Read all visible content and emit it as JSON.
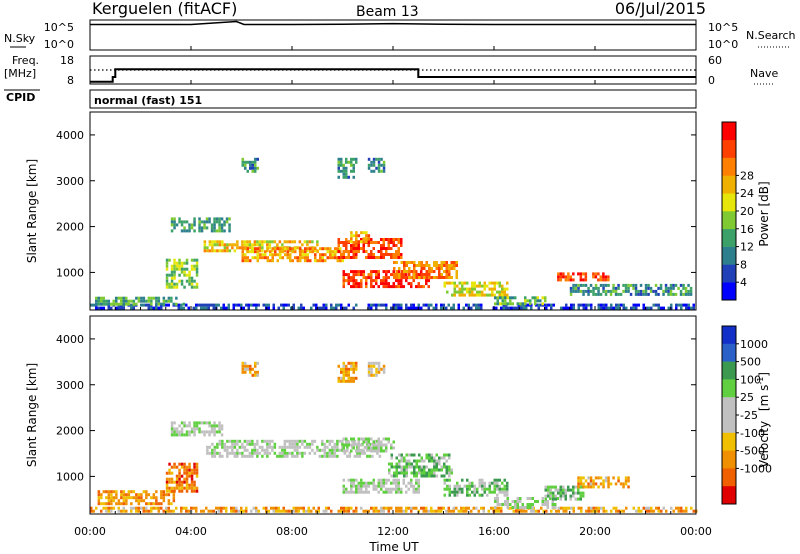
{
  "header": {
    "station": "Kerguelen (fitACF)",
    "beam": "Beam 13",
    "date": "06/Jul/2015"
  },
  "chart_data": [
    {
      "type": "line",
      "panel": "noise",
      "left_label": "N.Sky",
      "right_label": "N.Search",
      "left_ticks": [
        "10^5",
        "10^0"
      ],
      "right_ticks": [
        "10^5",
        "10^0"
      ],
      "x": [
        0,
        2,
        4,
        5.8,
        6.1,
        8,
        10,
        12,
        14,
        16,
        18,
        20,
        22,
        24
      ],
      "series": [
        {
          "values": [
            0.85,
            0.85,
            0.85,
            0.95,
            0.85,
            0.85,
            0.86,
            0.88,
            0.86,
            0.85,
            0.85,
            0.85,
            0.85,
            0.85
          ],
          "style": "solid"
        }
      ]
    },
    {
      "type": "line",
      "panel": "frequency",
      "left_label": "Freq.",
      "left_unit": "[MHz]",
      "right_label": "Nave",
      "left_ticks": [
        "18",
        "8"
      ],
      "right_ticks": [
        "60",
        "0"
      ],
      "series": [
        {
          "style": "solid",
          "x": [
            0,
            0.9,
            0.9,
            1.0,
            1.0,
            13.0,
            13.0,
            24
          ],
          "values": [
            8.8,
            8.8,
            10.5,
            10.5,
            13.3,
            13.3,
            10.5,
            10.5
          ]
        },
        {
          "style": "dotted",
          "x": [
            0,
            24
          ],
          "values": [
            13.0,
            13.0
          ]
        }
      ]
    },
    {
      "type": "table",
      "panel": "cpid",
      "label": "CPID",
      "text": "normal (fast) 151"
    },
    {
      "type": "heatmap",
      "panel": "power",
      "ylabel": "Slant Range [km]",
      "xlim": [
        0,
        24
      ],
      "ylim": [
        180,
        4500
      ],
      "yticks": [
        "1000",
        "2000",
        "3000",
        "4000"
      ],
      "colorbar": {
        "label": "Power [dB]",
        "ticks": [
          "4",
          "8",
          "12",
          "16",
          "20",
          "24",
          "28"
        ],
        "colors": [
          "#0000ff",
          "#2040b8",
          "#2e7f8e",
          "#3ca069",
          "#7fca33",
          "#e6e60a",
          "#f0b000",
          "#ff7f00",
          "#ff4000",
          "#ff0000"
        ]
      },
      "regions": [
        {
          "t": 0.0,
          "r": 250,
          "dt": 24.0,
          "dr": 70,
          "v": 0.15
        },
        {
          "t": 0.2,
          "r": 320,
          "dt": 3.5,
          "dr": 150,
          "v": 0.35
        },
        {
          "t": 3.0,
          "r": 700,
          "dt": 1.2,
          "dr": 600,
          "v": 0.45
        },
        {
          "t": 3.2,
          "r": 1900,
          "dt": 2.3,
          "dr": 300,
          "v": 0.35
        },
        {
          "t": 4.5,
          "r": 1450,
          "dt": 4.5,
          "dr": 250,
          "v": 0.6
        },
        {
          "t": 6.0,
          "r": 1250,
          "dt": 4.0,
          "dr": 300,
          "v": 0.7
        },
        {
          "t": 9.8,
          "r": 1350,
          "dt": 2.5,
          "dr": 400,
          "v": 0.85
        },
        {
          "t": 10.2,
          "r": 1700,
          "dt": 0.8,
          "dr": 200,
          "v": 0.7
        },
        {
          "t": 10.0,
          "r": 700,
          "dt": 3.5,
          "dr": 350,
          "v": 0.9
        },
        {
          "t": 12.0,
          "r": 900,
          "dt": 2.5,
          "dr": 350,
          "v": 0.75
        },
        {
          "t": 14.0,
          "r": 500,
          "dt": 2.5,
          "dr": 300,
          "v": 0.55
        },
        {
          "t": 16.0,
          "r": 300,
          "dt": 2.0,
          "dr": 180,
          "v": 0.4
        },
        {
          "t": 18.5,
          "r": 850,
          "dt": 2.0,
          "dr": 150,
          "v": 0.85
        },
        {
          "t": 19.0,
          "r": 500,
          "dt": 4.8,
          "dr": 250,
          "v": 0.3
        },
        {
          "t": 6.0,
          "r": 3200,
          "dt": 0.6,
          "dr": 300,
          "v": 0.3
        },
        {
          "t": 9.8,
          "r": 3100,
          "dt": 0.7,
          "dr": 400,
          "v": 0.3
        },
        {
          "t": 11.0,
          "r": 3200,
          "dt": 0.6,
          "dr": 300,
          "v": 0.3
        }
      ]
    },
    {
      "type": "heatmap",
      "panel": "velocity",
      "ylabel": "Slant Range [km]",
      "xlabel": "Time UT",
      "xlim": [
        0,
        24
      ],
      "ylim": [
        180,
        4500
      ],
      "xticks": [
        "00:00",
        "04:00",
        "08:00",
        "12:00",
        "16:00",
        "20:00",
        "00:00"
      ],
      "yticks": [
        "1000",
        "2000",
        "3000",
        "4000"
      ],
      "colorbar": {
        "label": "Velocity",
        "unit_base": "[m s",
        "unit_exp": "-1",
        "unit_end": "]",
        "ticks": [
          "1000",
          "500",
          "100",
          "25",
          "-25",
          "-100",
          "-500",
          "-1000"
        ],
        "colors": [
          "#1230c8",
          "#2a60c8",
          "#3c9a50",
          "#60d040",
          "#c0c0c0",
          "#c0c0c0",
          "#f0c000",
          "#f09000",
          "#f06000",
          "#e00000"
        ]
      },
      "regions": [
        {
          "t": 0.0,
          "r": 250,
          "dt": 24.0,
          "dr": 90,
          "v": 0.7
        },
        {
          "t": 0.3,
          "r": 400,
          "dt": 3.0,
          "dr": 300,
          "v": 0.75
        },
        {
          "t": 3.0,
          "r": 700,
          "dt": 1.2,
          "dr": 600,
          "v": 0.8
        },
        {
          "t": 3.2,
          "r": 1900,
          "dt": 2.0,
          "dr": 300,
          "v": 0.45
        },
        {
          "t": 4.5,
          "r": 1450,
          "dt": 7.0,
          "dr": 350,
          "v": 0.45
        },
        {
          "t": 10.0,
          "r": 1550,
          "dt": 2.0,
          "dr": 300,
          "v": 0.45
        },
        {
          "t": 11.8,
          "r": 1000,
          "dt": 2.5,
          "dr": 500,
          "v": 0.35
        },
        {
          "t": 14.0,
          "r": 600,
          "dt": 2.5,
          "dr": 350,
          "v": 0.35
        },
        {
          "t": 16.0,
          "r": 350,
          "dt": 2.5,
          "dr": 200,
          "v": 0.45
        },
        {
          "t": 18.0,
          "r": 500,
          "dt": 1.5,
          "dr": 300,
          "v": 0.35
        },
        {
          "t": 19.3,
          "r": 800,
          "dt": 2.0,
          "dr": 200,
          "v": 0.7
        },
        {
          "t": 10.0,
          "r": 650,
          "dt": 3.0,
          "dr": 300,
          "v": 0.45
        },
        {
          "t": 6.0,
          "r": 3200,
          "dt": 0.6,
          "dr": 300,
          "v": 0.7
        },
        {
          "t": 9.8,
          "r": 3100,
          "dt": 0.7,
          "dr": 400,
          "v": 0.7
        },
        {
          "t": 11.0,
          "r": 3200,
          "dt": 0.6,
          "dr": 300,
          "v": 0.6
        }
      ]
    }
  ]
}
